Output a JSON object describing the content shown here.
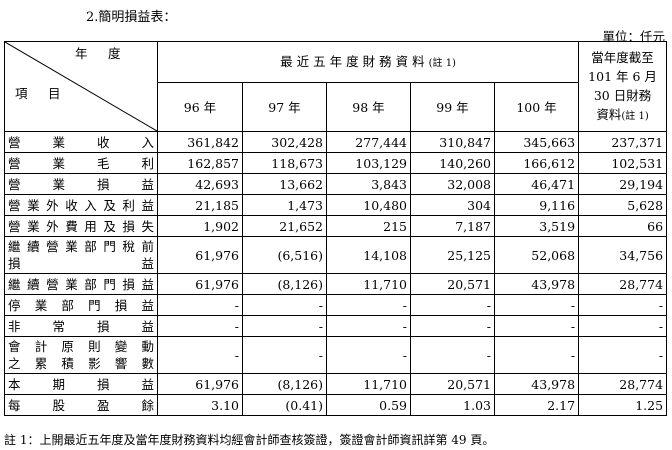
{
  "heading": "2.簡明損益表：",
  "unit": "單位：仟元",
  "header": {
    "year_label": "年　度",
    "item_label": "項　目",
    "span_label": "最近五年度財務資料",
    "span_note": "(註 1)",
    "years": [
      "96 年",
      "97 年",
      "98 年",
      "99 年",
      "100 年"
    ],
    "current_lines": [
      "當年度截至",
      "101 年 6 月",
      "30 日財務",
      "資料"
    ],
    "current_note": "(註 1)"
  },
  "rows": [
    {
      "label": "營業收入",
      "values": [
        "361,842",
        "302,428",
        "277,444",
        "310,847",
        "345,663",
        "237,371"
      ]
    },
    {
      "label": "營業毛利",
      "values": [
        "162,857",
        "118,673",
        "103,129",
        "140,260",
        "166,612",
        "102,531"
      ]
    },
    {
      "label": "營業損益",
      "values": [
        "42,693",
        "13,662",
        "3,843",
        "32,008",
        "46,471",
        "29,194"
      ]
    },
    {
      "label": "營業外收入及利益",
      "values": [
        "21,185",
        "1,473",
        "10,480",
        "304",
        "9,116",
        "5,628"
      ]
    },
    {
      "label": "營業外費用及損失",
      "values": [
        "1,902",
        "21,652",
        "215",
        "7,187",
        "3,519",
        "66"
      ]
    },
    {
      "label_lines": [
        "繼續營業部門稅前",
        "損　　　　　　益"
      ],
      "values": [
        "61,976",
        "(6,516)",
        "14,108",
        "25,125",
        "52,068",
        "34,756"
      ]
    },
    {
      "label": "繼續營業部門損益",
      "values": [
        "61,976",
        "(8,126)",
        "11,710",
        "20,571",
        "43,978",
        "28,774"
      ]
    },
    {
      "label": "停業部門損益",
      "values": [
        "-",
        "-",
        "-",
        "-",
        "-",
        "-"
      ]
    },
    {
      "label": "非常損益",
      "values": [
        "-",
        "-",
        "-",
        "-",
        "-",
        "-"
      ]
    },
    {
      "label_lines": [
        "會計原則變動",
        "之累積影響數"
      ],
      "values": [
        "-",
        "-",
        "-",
        "-",
        "-",
        "-"
      ]
    },
    {
      "label": "本期損益",
      "values": [
        "61,976",
        "(8,126)",
        "11,710",
        "20,571",
        "43,978",
        "28,774"
      ]
    },
    {
      "label": "每股盈餘",
      "values": [
        "3.10",
        "(0.41)",
        "0.59",
        "1.03",
        "2.17",
        "1.25"
      ]
    }
  ],
  "footnote": "註 1：上開最近五年度及當年度財務資料均經會計師查核簽證，簽證會計師資訊詳第 49 頁。"
}
